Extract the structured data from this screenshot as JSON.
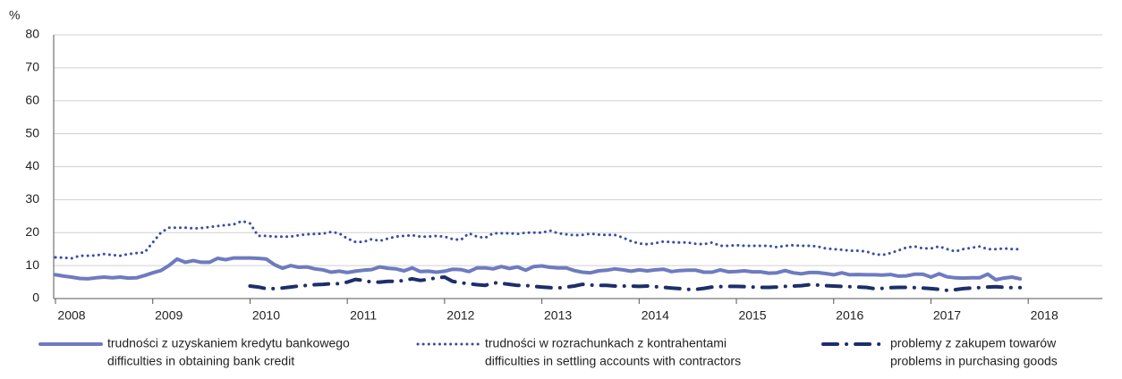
{
  "chart_data": {
    "type": "line",
    "y_label": "%",
    "categories": [
      "2008",
      null,
      null,
      null,
      null,
      null,
      null,
      null,
      null,
      null,
      null,
      null,
      "2009",
      null,
      null,
      null,
      null,
      null,
      null,
      null,
      null,
      null,
      null,
      null,
      "2010",
      null,
      null,
      null,
      null,
      null,
      null,
      null,
      null,
      null,
      null,
      null,
      "2011",
      null,
      null,
      null,
      null,
      null,
      null,
      null,
      null,
      null,
      null,
      null,
      "2012",
      null,
      null,
      null,
      null,
      null,
      null,
      null,
      null,
      null,
      null,
      null,
      "2013",
      null,
      null,
      null,
      null,
      null,
      null,
      null,
      null,
      null,
      null,
      null,
      "2014",
      null,
      null,
      null,
      null,
      null,
      null,
      null,
      null,
      null,
      null,
      null,
      "2015",
      null,
      null,
      null,
      null,
      null,
      null,
      null,
      null,
      null,
      null,
      null,
      "2016",
      null,
      null,
      null,
      null,
      null,
      null,
      null,
      null,
      null,
      null,
      null,
      "2017",
      null,
      null,
      null,
      null,
      null,
      null,
      null,
      null,
      null,
      null,
      null,
      "2018"
    ],
    "series": [
      {
        "name": "trudności z uzyskaniem kredytu bankowego",
        "name_en": "difficulties in obtaining bank credit",
        "color": "#6e7bbf",
        "style": "solid",
        "values": [
          7.2,
          6.8,
          6.5,
          6.1,
          6.0,
          6.3,
          6.5,
          6.3,
          6.5,
          6.2,
          6.3,
          7.0,
          7.8,
          8.5,
          10,
          12,
          11,
          11.5,
          11,
          11,
          12.2,
          11.8,
          12.3,
          12.3,
          12.3,
          12.2,
          12,
          10.3,
          9.2,
          10,
          9.5,
          9.6,
          9,
          8.7,
          8,
          8.3,
          7.9,
          8.3,
          8.6,
          8.8,
          9.6,
          9.2,
          9,
          8.4,
          9.3,
          8.2,
          8.3,
          8,
          8.3,
          8.9,
          8.8,
          8.2,
          9.3,
          9.3,
          9,
          9.7,
          9.1,
          9.6,
          8.6,
          9.7,
          9.9,
          9.5,
          9.3,
          9.3,
          8.5,
          8,
          7.8,
          8.4,
          8.6,
          9,
          8.7,
          8.3,
          8.7,
          8.4,
          8.7,
          8.9,
          8.2,
          8.5,
          8.6,
          8.6,
          8,
          8,
          8.7,
          8.1,
          8.2,
          8.4,
          8.1,
          8.1,
          7.7,
          7.8,
          8.5,
          7.8,
          7.5,
          7.9,
          7.9,
          7.6,
          7.2,
          7.8,
          7.2,
          7.3,
          7.2,
          7.2,
          7.1,
          7.3,
          6.8,
          6.9,
          7.4,
          7.4,
          6.5,
          7.5,
          6.6,
          6.3,
          6.2,
          6.3,
          6.3,
          7.4,
          5.7,
          6.2,
          6.5,
          6.0,
          null
        ]
      },
      {
        "name": "trudności w rozrachunkach z kontrahentami",
        "name_en": "difficulties in settling accounts with contractors",
        "color": "#3b4ea3",
        "style": "dotted",
        "values": [
          12.5,
          12.4,
          12.2,
          13,
          13,
          13.1,
          13.5,
          13.2,
          13,
          13.5,
          13.8,
          14,
          17,
          20,
          21.5,
          21.5,
          21.5,
          21.3,
          21.4,
          21.7,
          22,
          22.3,
          22.5,
          23.5,
          22.8,
          19,
          19,
          18.8,
          18.8,
          18.8,
          19.2,
          19.5,
          19.6,
          19.7,
          20.2,
          19.8,
          18.2,
          17.2,
          17.2,
          18,
          17.5,
          18.2,
          18.8,
          19,
          19.2,
          18.8,
          18.8,
          19,
          18.8,
          18,
          17.8,
          19.8,
          18.8,
          18.4,
          19.8,
          19.8,
          19.8,
          19.6,
          20,
          20,
          20,
          20.6,
          19.8,
          19.5,
          19.2,
          19.3,
          19.7,
          19.4,
          19.3,
          19.3,
          18.5,
          17.4,
          16.7,
          16.5,
          16.8,
          17.3,
          17.1,
          17,
          17,
          16.6,
          16.5,
          17,
          16,
          16,
          16.2,
          16,
          16,
          16,
          16,
          15.6,
          16,
          16.2,
          16,
          16,
          15.8,
          15.2,
          15,
          14.8,
          14.5,
          14.5,
          14.3,
          13.5,
          13.2,
          13.8,
          14.6,
          15.5,
          15.8,
          15.2,
          15.2,
          15.8,
          15,
          14.3,
          15,
          15.4,
          15.8,
          15,
          15,
          15.2,
          15,
          15,
          null
        ]
      },
      {
        "name": "problemy z zakupem towarów",
        "name_en": "problems in purchasing goods",
        "color": "#1c2f6b",
        "style": "dashdot",
        "values": [
          null,
          null,
          null,
          null,
          null,
          null,
          null,
          null,
          null,
          null,
          null,
          null,
          null,
          null,
          null,
          null,
          null,
          null,
          null,
          null,
          null,
          null,
          null,
          null,
          3.8,
          3.5,
          3,
          3,
          3.2,
          3.5,
          3.8,
          4,
          4.2,
          4.3,
          4.5,
          4.5,
          5,
          5.8,
          5.5,
          5,
          5,
          5.2,
          5.2,
          5.5,
          6,
          5.5,
          5.8,
          6.3,
          6.5,
          5.2,
          4.8,
          4.5,
          4.2,
          4,
          4.8,
          4.6,
          4.3,
          4,
          4,
          3.7,
          3.5,
          3.3,
          3.2,
          3.5,
          3.8,
          4.3,
          4.1,
          4,
          4,
          3.8,
          3.8,
          3.8,
          3.7,
          3.8,
          3.6,
          3.4,
          3.2,
          3,
          2.8,
          2.8,
          3.1,
          3.5,
          3.6,
          3.7,
          3.7,
          3.6,
          3.5,
          3.4,
          3.4,
          3.5,
          3.7,
          3.8,
          3.9,
          4.2,
          4.1,
          3.9,
          3.8,
          3.7,
          3.6,
          3.5,
          3.4,
          3,
          3.1,
          3.3,
          3.4,
          3.4,
          3.3,
          3.2,
          3,
          2.8,
          2.5,
          2.7,
          3.0,
          3.2,
          3.3,
          3.5,
          3.6,
          3.4,
          3.3,
          3.3,
          null
        ]
      }
    ],
    "ylim": [
      0,
      80
    ],
    "yticks": [
      0,
      10,
      20,
      30,
      40,
      50,
      60,
      70,
      80
    ],
    "grid": true
  }
}
